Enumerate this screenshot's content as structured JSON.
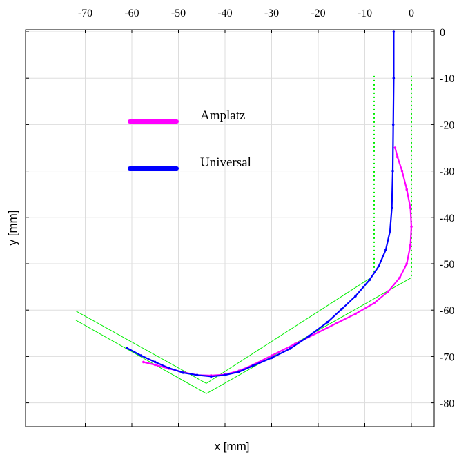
{
  "chart_data": {
    "type": "line",
    "title": "",
    "xlabel": "x [mm]",
    "ylabel": "y [mm]",
    "xlim": [
      -78,
      6
    ],
    "ylim": [
      -86,
      0
    ],
    "x_ticks": [
      -70,
      -60,
      -50,
      -40,
      -30,
      -20,
      -10,
      0
    ],
    "y_ticks": [
      0,
      -10,
      -20,
      -30,
      -40,
      -50,
      -60,
      -70,
      -80
    ],
    "x_tick_labels": [
      "-70",
      "-60",
      "-50",
      "-40",
      "-30",
      "-20",
      "-10",
      "0"
    ],
    "y_tick_labels": [
      "0",
      "-10",
      "-20",
      "-30",
      "-40",
      "-50",
      "-60",
      "-70",
      "-80"
    ],
    "x_axis_position": "top",
    "y_axis_position": "right",
    "grid": true,
    "legend_position": "upper-left",
    "series": [
      {
        "name": "Amplatz",
        "color": "#ff00ff",
        "points": [
          [
            -3.5,
            -25
          ],
          [
            -3,
            -27
          ],
          [
            -2,
            -30
          ],
          [
            -1,
            -34
          ],
          [
            -0.2,
            -38
          ],
          [
            0,
            -42
          ],
          [
            -0.2,
            -46
          ],
          [
            -1,
            -50
          ],
          [
            -2.5,
            -53
          ],
          [
            -5,
            -56
          ],
          [
            -8,
            -58.5
          ],
          [
            -12,
            -60.8
          ],
          [
            -16,
            -62.8
          ],
          [
            -20,
            -64.8
          ],
          [
            -25,
            -67.3
          ],
          [
            -30,
            -69.8
          ],
          [
            -34,
            -71.8
          ],
          [
            -37,
            -73.1
          ],
          [
            -40,
            -73.9
          ],
          [
            -43,
            -74.1
          ],
          [
            -46,
            -74
          ],
          [
            -49,
            -73.4
          ],
          [
            -52,
            -72.6
          ],
          [
            -55,
            -71.8
          ],
          [
            -57.5,
            -71.2
          ]
        ]
      },
      {
        "name": "Universal",
        "color": "#0000ff",
        "points": [
          [
            -3.8,
            0
          ],
          [
            -3.8,
            -10
          ],
          [
            -3.9,
            -20
          ],
          [
            -4,
            -30
          ],
          [
            -4.2,
            -38
          ],
          [
            -4.6,
            -43
          ],
          [
            -5.5,
            -47
          ],
          [
            -7,
            -50.5
          ],
          [
            -9,
            -53.5
          ],
          [
            -12,
            -57
          ],
          [
            -15,
            -59.8
          ],
          [
            -18,
            -62.6
          ],
          [
            -22,
            -65.6
          ],
          [
            -26,
            -68.3
          ],
          [
            -30,
            -70.3
          ],
          [
            -34,
            -72
          ],
          [
            -37,
            -73.3
          ],
          [
            -40,
            -74
          ],
          [
            -43,
            -74.3
          ],
          [
            -46,
            -74
          ],
          [
            -49,
            -73.5
          ],
          [
            -52,
            -72.5
          ],
          [
            -55,
            -71.2
          ],
          [
            -58,
            -69.8
          ],
          [
            -61,
            -68.2
          ]
        ]
      }
    ],
    "guide_lines": {
      "dotted_color": "#00ee00",
      "solid_color": "#00ee00",
      "dotted": [
        [
          [
            -8,
            -9.5
          ],
          [
            -8,
            -52
          ]
        ],
        [
          [
            0,
            -9.5
          ],
          [
            0,
            -53
          ]
        ]
      ],
      "solid": [
        [
          [
            -9,
            -53.2
          ],
          [
            -44,
            -75.8
          ]
        ],
        [
          [
            0,
            -53
          ],
          [
            -44,
            -78
          ]
        ],
        [
          [
            -44,
            -75.8
          ],
          [
            -72,
            -60.2
          ]
        ],
        [
          [
            -44,
            -78
          ],
          [
            -72,
            -62.2
          ]
        ]
      ]
    }
  }
}
